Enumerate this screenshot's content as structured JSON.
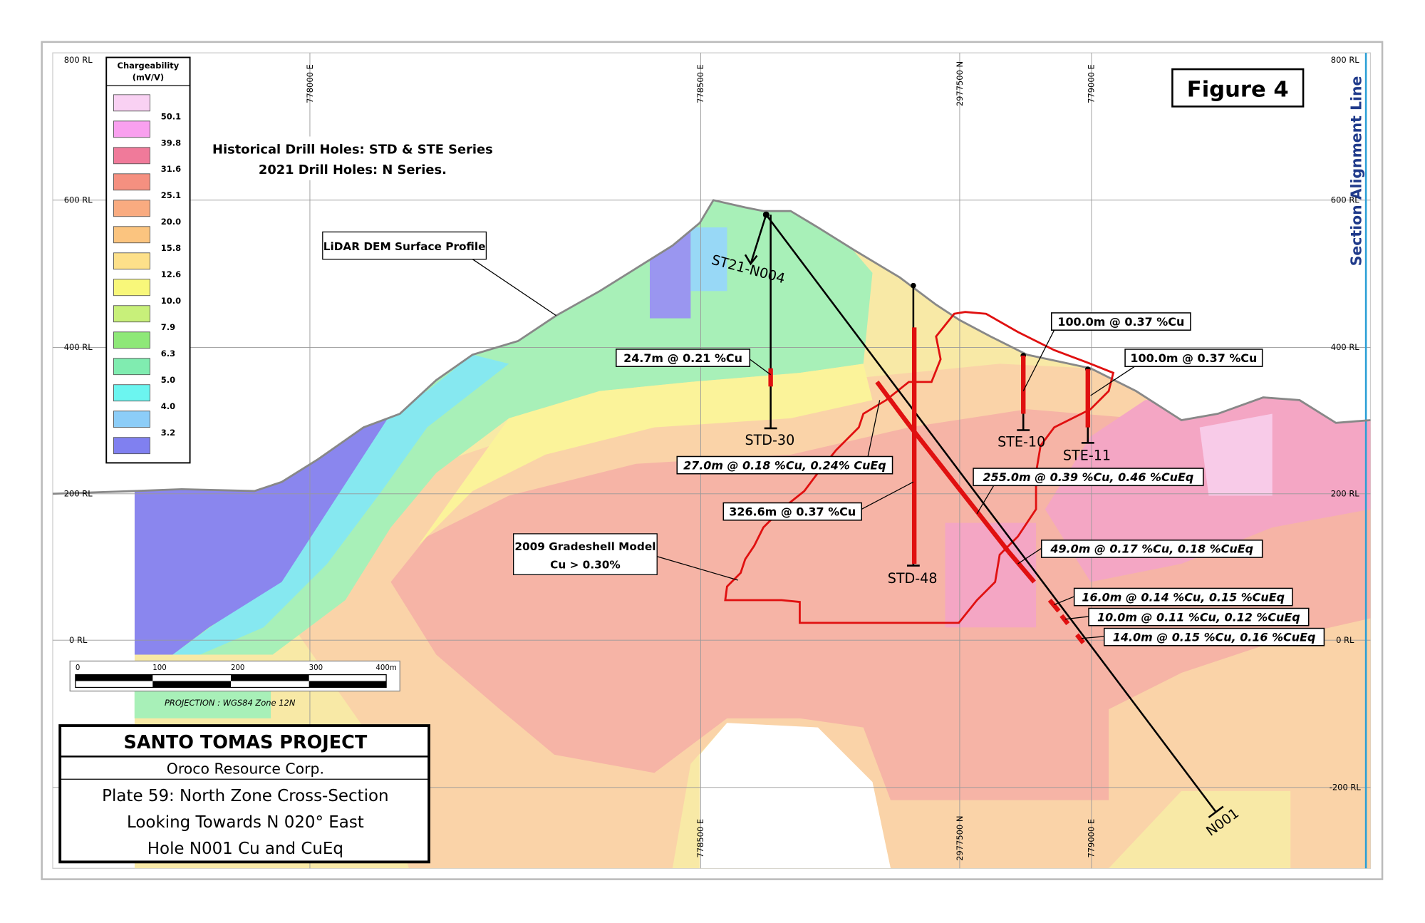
{
  "header": {
    "figure_label": "Figure 4",
    "section_alignment": "Section Alignment Line"
  },
  "legend": {
    "title": [
      "Chargeability",
      "(mV/V)"
    ],
    "labels": [
      "50.1",
      "39.8",
      "31.6",
      "25.1",
      "20.0",
      "15.8",
      "12.6",
      "10.0",
      "7.9",
      "6.3",
      "5.0",
      "4.0",
      "3.2"
    ]
  },
  "notes": [
    "Historical Drill Holes: STD & STE Series",
    "2021 Drill Holes: N Series."
  ],
  "surface_label": "LiDAR DEM Surface Profile",
  "gradeshell_label": [
    "2009 Gradeshell Model",
    "Cu > 0.30%"
  ],
  "axes": {
    "rl_left": [
      "800 RL",
      "600 RL",
      "400 RL",
      "200 RL",
      "0 RL"
    ],
    "rl_right": [
      "800 RL",
      "600 RL",
      "400 RL",
      "200 RL",
      "0 RL",
      "-200 RL"
    ],
    "top": [
      "778000 E",
      "778500 E",
      "2977500 N",
      "779000 E"
    ],
    "bottom": [
      "778500 E",
      "2977500 N",
      "779000 E"
    ]
  },
  "drill_holes": [
    "ST21-N004",
    "STD-30",
    "STD-48",
    "STE-10",
    "STE-11",
    "N001"
  ],
  "intercepts": [
    "24.7m @ 0.21 %Cu",
    "27.0m @ 0.18 %Cu, 0.24% CuEq",
    "326.6m @ 0.37 %Cu",
    "255.0m @ 0.39 %Cu, 0.46 %CuEq",
    "100.0m @ 0.37 %Cu",
    "100.0m @ 0.37 %Cu",
    "49.0m @ 0.17 %Cu, 0.18 %CuEq",
    "16.0m @ 0.14 %Cu, 0.15 %CuEq",
    "10.0m @ 0.11 %Cu, 0.12 %CuEq",
    "14.0m @ 0.15 %Cu, 0.16 %CuEq"
  ],
  "scale_bar": [
    "0",
    "100",
    "200",
    "300",
    "400m"
  ],
  "projection": "PROJECTION : WGS84 Zone 12N",
  "title_block": [
    "SANTO TOMAS PROJECT",
    "Oroco Resource Corp.",
    "Plate 59: North Zone Cross-Section",
    "Looking Towards N 020° East",
    "Hole N001 Cu and CuEq"
  ]
}
